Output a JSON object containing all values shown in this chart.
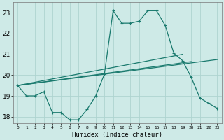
{
  "xlabel": "Humidex (Indice chaleur)",
  "background_color": "#ceeae7",
  "grid_color": "#aed4d0",
  "line_color": "#1a7a6e",
  "xlim": [
    -0.5,
    23.5
  ],
  "ylim": [
    17.7,
    23.5
  ],
  "yticks": [
    18,
    19,
    20,
    21,
    22,
    23
  ],
  "xticks": [
    0,
    1,
    2,
    3,
    4,
    5,
    6,
    7,
    8,
    9,
    10,
    11,
    12,
    13,
    14,
    15,
    16,
    17,
    18,
    19,
    20,
    21,
    22,
    23
  ],
  "curve1_x": [
    0,
    1,
    2,
    3,
    4,
    5,
    6,
    7,
    8,
    9,
    10,
    11,
    12,
    13,
    14,
    15,
    16,
    17,
    18,
    19,
    20,
    21,
    22,
    23
  ],
  "curve1_y": [
    19.5,
    19.0,
    19.0,
    19.2,
    18.2,
    18.2,
    17.85,
    17.85,
    18.35,
    19.0,
    20.05,
    23.1,
    22.5,
    22.5,
    22.6,
    23.1,
    23.1,
    22.4,
    21.05,
    20.7,
    19.9,
    18.9,
    18.65,
    18.4
  ],
  "line1_x": [
    0,
    23
  ],
  "line1_y": [
    19.5,
    20.75
  ],
  "line2_x": [
    0,
    20
  ],
  "line2_y": [
    19.5,
    20.65
  ],
  "line3_x": [
    0,
    19
  ],
  "line3_y": [
    19.5,
    21.0
  ]
}
